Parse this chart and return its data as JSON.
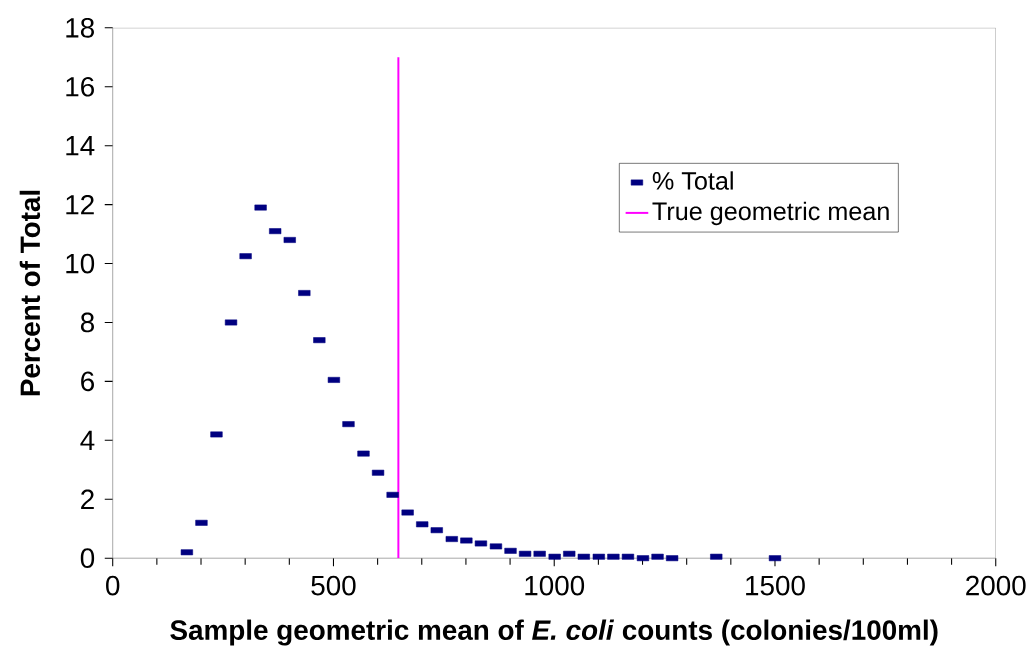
{
  "chart_data": {
    "type": "scatter",
    "xlabel": "Sample geometric mean of *E. coli* counts (colonies/100ml)",
    "ylabel": "Percent of Total",
    "series": [
      {
        "name": "% Total",
        "marker": "square",
        "color": "#000080",
        "x": [
          168,
          201,
          235,
          268,
          301,
          335,
          368,
          401,
          434,
          468,
          501,
          534,
          568,
          601,
          634,
          668,
          701,
          734,
          768,
          801,
          834,
          868,
          901,
          934,
          967,
          1001,
          1034,
          1067,
          1101,
          1134,
          1167,
          1201,
          1234,
          1267,
          1367,
          1500
        ],
        "values": [
          0.2,
          1.2,
          4.2,
          8.0,
          10.25,
          11.9,
          11.1,
          10.8,
          9.0,
          7.4,
          6.05,
          4.55,
          3.55,
          2.9,
          2.15,
          1.55,
          1.15,
          0.95,
          0.65,
          0.6,
          0.5,
          0.4,
          0.25,
          0.15,
          0.15,
          0.05,
          0.15,
          0.05,
          0.05,
          0.05,
          0.05,
          0,
          0.05,
          0,
          0.05,
          0
        ]
      },
      {
        "name": "True geometric mean",
        "type": "line",
        "color": "#ff00ff",
        "x": [
          647,
          647
        ],
        "values": [
          0,
          17
        ]
      }
    ],
    "xlim": [
      0,
      2000
    ],
    "xticks": [
      0,
      500,
      1000,
      1500,
      2000
    ],
    "ylim": [
      0,
      18
    ],
    "yticks": [
      0,
      2,
      4,
      6,
      8,
      10,
      12,
      14,
      16,
      18
    ],
    "grid": false,
    "legend": "right"
  }
}
